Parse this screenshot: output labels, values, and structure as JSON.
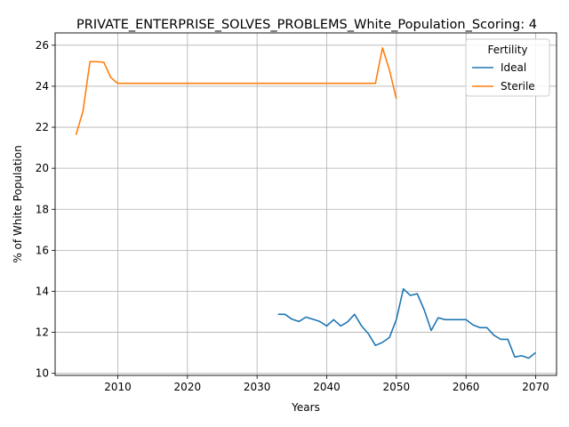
{
  "chart_data": {
    "type": "line",
    "title": "PRIVATE_ENTERPRISE_SOLVES_PROBLEMS_White_Population_Scoring: 4",
    "xlabel": "Years",
    "ylabel": "% of White Population",
    "xlim": [
      2001,
      2073
    ],
    "ylim": [
      9.9,
      26.6
    ],
    "xticks": [
      2010,
      2020,
      2030,
      2040,
      2050,
      2060,
      2070
    ],
    "yticks": [
      10,
      12,
      14,
      16,
      18,
      20,
      22,
      24,
      26
    ],
    "grid": true,
    "legend": {
      "title": "Fertility",
      "placement": "top-right"
    },
    "series": [
      {
        "name": "Ideal",
        "color": "#1f77b4",
        "x": [
          2033,
          2034,
          2035,
          2036,
          2037,
          2038,
          2039,
          2040,
          2041,
          2042,
          2043,
          2044,
          2045,
          2046,
          2047,
          2048,
          2049,
          2050,
          2051,
          2052,
          2053,
          2054,
          2055,
          2056,
          2057,
          2058,
          2059,
          2060,
          2061,
          2062,
          2063,
          2064,
          2065,
          2066,
          2067,
          2068,
          2069,
          2070
        ],
        "y": [
          12.88,
          12.88,
          12.64,
          12.53,
          12.74,
          12.64,
          12.53,
          12.31,
          12.62,
          12.31,
          12.51,
          12.88,
          12.31,
          11.92,
          11.36,
          11.51,
          11.75,
          12.62,
          14.12,
          13.8,
          13.88,
          13.09,
          12.09,
          12.71,
          12.62,
          12.62,
          12.62,
          12.62,
          12.36,
          12.23,
          12.23,
          11.86,
          11.66,
          11.66,
          10.8,
          10.86,
          10.74,
          11.01
        ]
      },
      {
        "name": "Sterile",
        "color": "#ff7f0e",
        "x": [
          2004,
          2005,
          2006,
          2007,
          2008,
          2009,
          2010,
          2011,
          2012,
          2013,
          2014,
          2015,
          2016,
          2017,
          2018,
          2019,
          2020,
          2021,
          2022,
          2023,
          2024,
          2025,
          2026,
          2027,
          2028,
          2029,
          2030,
          2031,
          2032,
          2033,
          2034,
          2035,
          2036,
          2037,
          2038,
          2039,
          2040,
          2041,
          2042,
          2043,
          2044,
          2045,
          2046,
          2047,
          2048,
          2049,
          2050
        ],
        "y": [
          21.63,
          22.78,
          25.2,
          25.2,
          25.17,
          24.42,
          24.14,
          24.14,
          24.14,
          24.14,
          24.14,
          24.14,
          24.14,
          24.14,
          24.14,
          24.14,
          24.14,
          24.14,
          24.14,
          24.14,
          24.14,
          24.14,
          24.14,
          24.14,
          24.14,
          24.14,
          24.14,
          24.14,
          24.14,
          24.14,
          24.14,
          24.14,
          24.14,
          24.14,
          24.14,
          24.14,
          24.14,
          24.14,
          24.14,
          24.14,
          24.14,
          24.14,
          24.14,
          24.14,
          25.87,
          24.8,
          23.38
        ]
      }
    ]
  }
}
